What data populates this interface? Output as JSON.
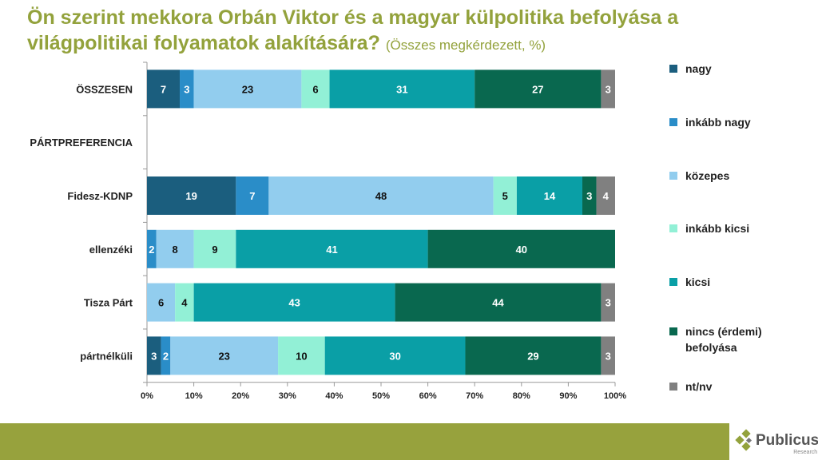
{
  "title": {
    "main": "Ön szerint mekkora Orbán Viktor és a magyar külpolitika befolyása a világpolitikai folyamatok alakítására?",
    "sub": "(Összes megkérdezett, %)"
  },
  "chart_data": {
    "type": "bar",
    "orientation": "horizontal",
    "stacked": true,
    "categories": [
      "ÖSSZESEN",
      "PÁRTPREFERENCIA",
      "Fidesz-KDNP",
      "ellenzéki",
      "Tisza Párt",
      "pártnélküli"
    ],
    "series": [
      {
        "name": "nagy",
        "color": "#1b5e7e",
        "values": [
          7,
          null,
          19,
          0,
          0,
          3
        ]
      },
      {
        "name": "inkább nagy",
        "color": "#2a8dc8",
        "values": [
          3,
          null,
          7,
          2,
          0,
          2
        ]
      },
      {
        "name": "közepes",
        "color": "#92cdee",
        "values": [
          23,
          null,
          48,
          8,
          6,
          23
        ]
      },
      {
        "name": "inkább kicsi",
        "color": "#92f0d6",
        "values": [
          6,
          null,
          5,
          9,
          4,
          10
        ]
      },
      {
        "name": "kicsi",
        "color": "#0a9fa6",
        "values": [
          31,
          null,
          14,
          41,
          43,
          30
        ]
      },
      {
        "name": "nincs (érdemi) befolyása",
        "color": "#09684f",
        "values": [
          27,
          null,
          3,
          40,
          44,
          29
        ]
      },
      {
        "name": "nt/nv",
        "color": "#808080",
        "values": [
          3,
          null,
          4,
          0,
          3,
          3
        ]
      }
    ],
    "xlim": [
      0,
      100
    ],
    "xticks": [
      "0%",
      "10%",
      "20%",
      "30%",
      "40%",
      "50%",
      "60%",
      "70%",
      "80%",
      "90%",
      "100%"
    ],
    "legend": "right"
  },
  "logo": {
    "name": "Publicus",
    "sub": "Research"
  }
}
